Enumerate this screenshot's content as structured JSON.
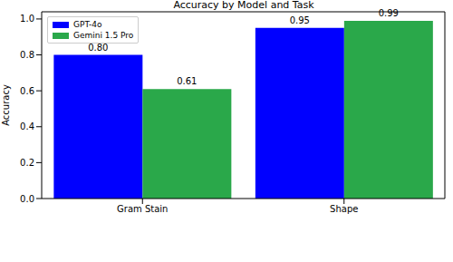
{
  "chart_data": {
    "type": "bar",
    "title": "Accuracy by Model and Task",
    "y_label": "Accuracy",
    "categories": [
      "Gram Stain",
      "Shape"
    ],
    "series": [
      {
        "name": "GPT-4o",
        "color": "#0000ff",
        "values": [
          0.8,
          0.95
        ],
        "value_labels": [
          "0.80",
          "0.95"
        ]
      },
      {
        "name": "Gemini 1.5 Pro",
        "color": "#2aa84a",
        "values": [
          0.61,
          0.99
        ],
        "value_labels": [
          "0.61",
          "0.99"
        ]
      }
    ],
    "ylim": [
      0,
      1.04
    ],
    "yticks": [
      {
        "value": 0,
        "label": "0.0"
      },
      0.2,
      0.4,
      0.6,
      0.8,
      {
        "value": 1,
        "label": "1.0"
      }
    ],
    "grid": false,
    "legend": "upper left",
    "data_labels": true
  }
}
